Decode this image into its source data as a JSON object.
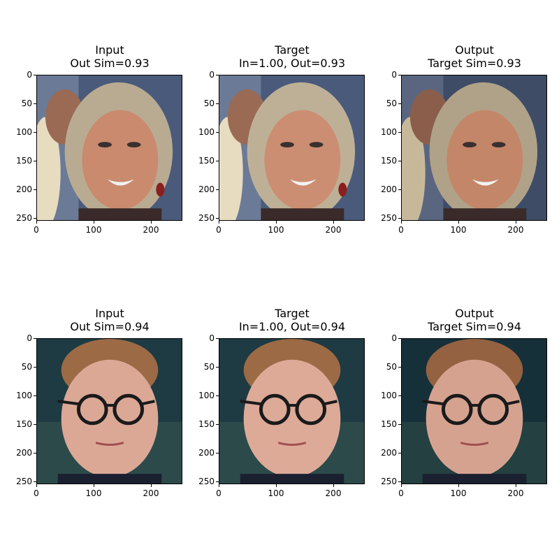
{
  "yticks": [
    "0",
    "50",
    "100",
    "150",
    "200",
    "250"
  ],
  "xticks": [
    "0",
    "100",
    "200"
  ],
  "rows": [
    {
      "panels": [
        {
          "title_line1": "Input",
          "title_line2": "Out Sim=0.93",
          "image": "woman-face-input"
        },
        {
          "title_line1": "Target",
          "title_line2": "In=1.00, Out=0.93",
          "image": "woman-face-target"
        },
        {
          "title_line1": "Output",
          "title_line2": "Target Sim=0.93",
          "image": "woman-face-output"
        }
      ]
    },
    {
      "panels": [
        {
          "title_line1": "Input",
          "title_line2": "Out Sim=0.94",
          "image": "man-glasses-face-input"
        },
        {
          "title_line1": "Target",
          "title_line2": "In=1.00, Out=0.94",
          "image": "man-glasses-face-target"
        },
        {
          "title_line1": "Output",
          "title_line2": "Target Sim=0.94",
          "image": "man-glasses-face-output"
        }
      ]
    }
  ],
  "colors": {
    "woman_bg": "#4a5a7a",
    "woman_skin": "#c98a6e",
    "woman_hair": "#b9ab92",
    "man_bg": "#1e3a42",
    "man_skin": "#dba896",
    "man_hair": "#9c6a45",
    "glasses": "#1a1a1a"
  }
}
